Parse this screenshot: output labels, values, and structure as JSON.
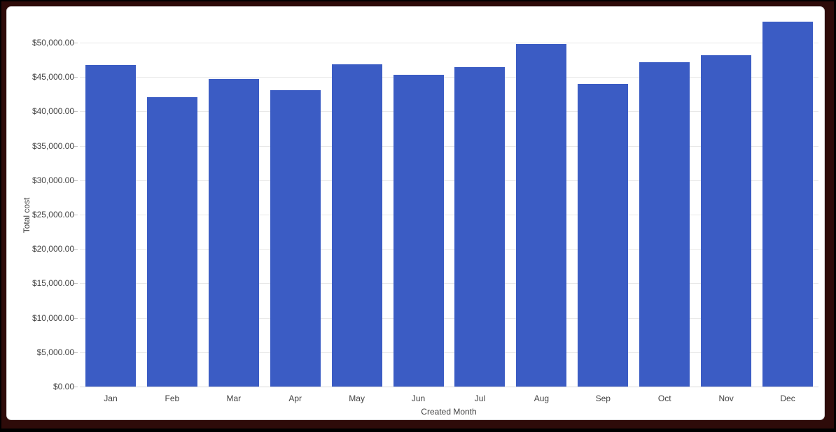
{
  "window": {
    "outer_color": "#000000",
    "border_color": "#2e0b09",
    "card_background": "#ffffff",
    "card_border_color": "#d9d9d9"
  },
  "chart_data": {
    "type": "bar",
    "title": "",
    "xlabel": "Created Month",
    "ylabel": "Total cost",
    "categories": [
      "Jan",
      "Feb",
      "Mar",
      "Apr",
      "May",
      "Jun",
      "Jul",
      "Aug",
      "Sep",
      "Oct",
      "Nov",
      "Dec"
    ],
    "values": [
      46700,
      42100,
      44700,
      43100,
      46900,
      45300,
      46400,
      49800,
      44000,
      47200,
      48200,
      53000
    ],
    "y_ticks": {
      "values": [
        0,
        5000,
        10000,
        15000,
        20000,
        25000,
        30000,
        35000,
        40000,
        45000,
        50000
      ],
      "labels": [
        "$0.00",
        "$5,000.00",
        "$10,000.00",
        "$15,000.00",
        "$20,000.00",
        "$25,000.00",
        "$30,000.00",
        "$35,000.00",
        "$40,000.00",
        "$45,000.00",
        "$50,000.00"
      ]
    },
    "ylim": [
      0,
      50000
    ],
    "grid": true,
    "legend": "none",
    "bar_color": "#3b5cc4",
    "gridline_color": "#e8e8e8",
    "axis_label_color": "#424242"
  }
}
